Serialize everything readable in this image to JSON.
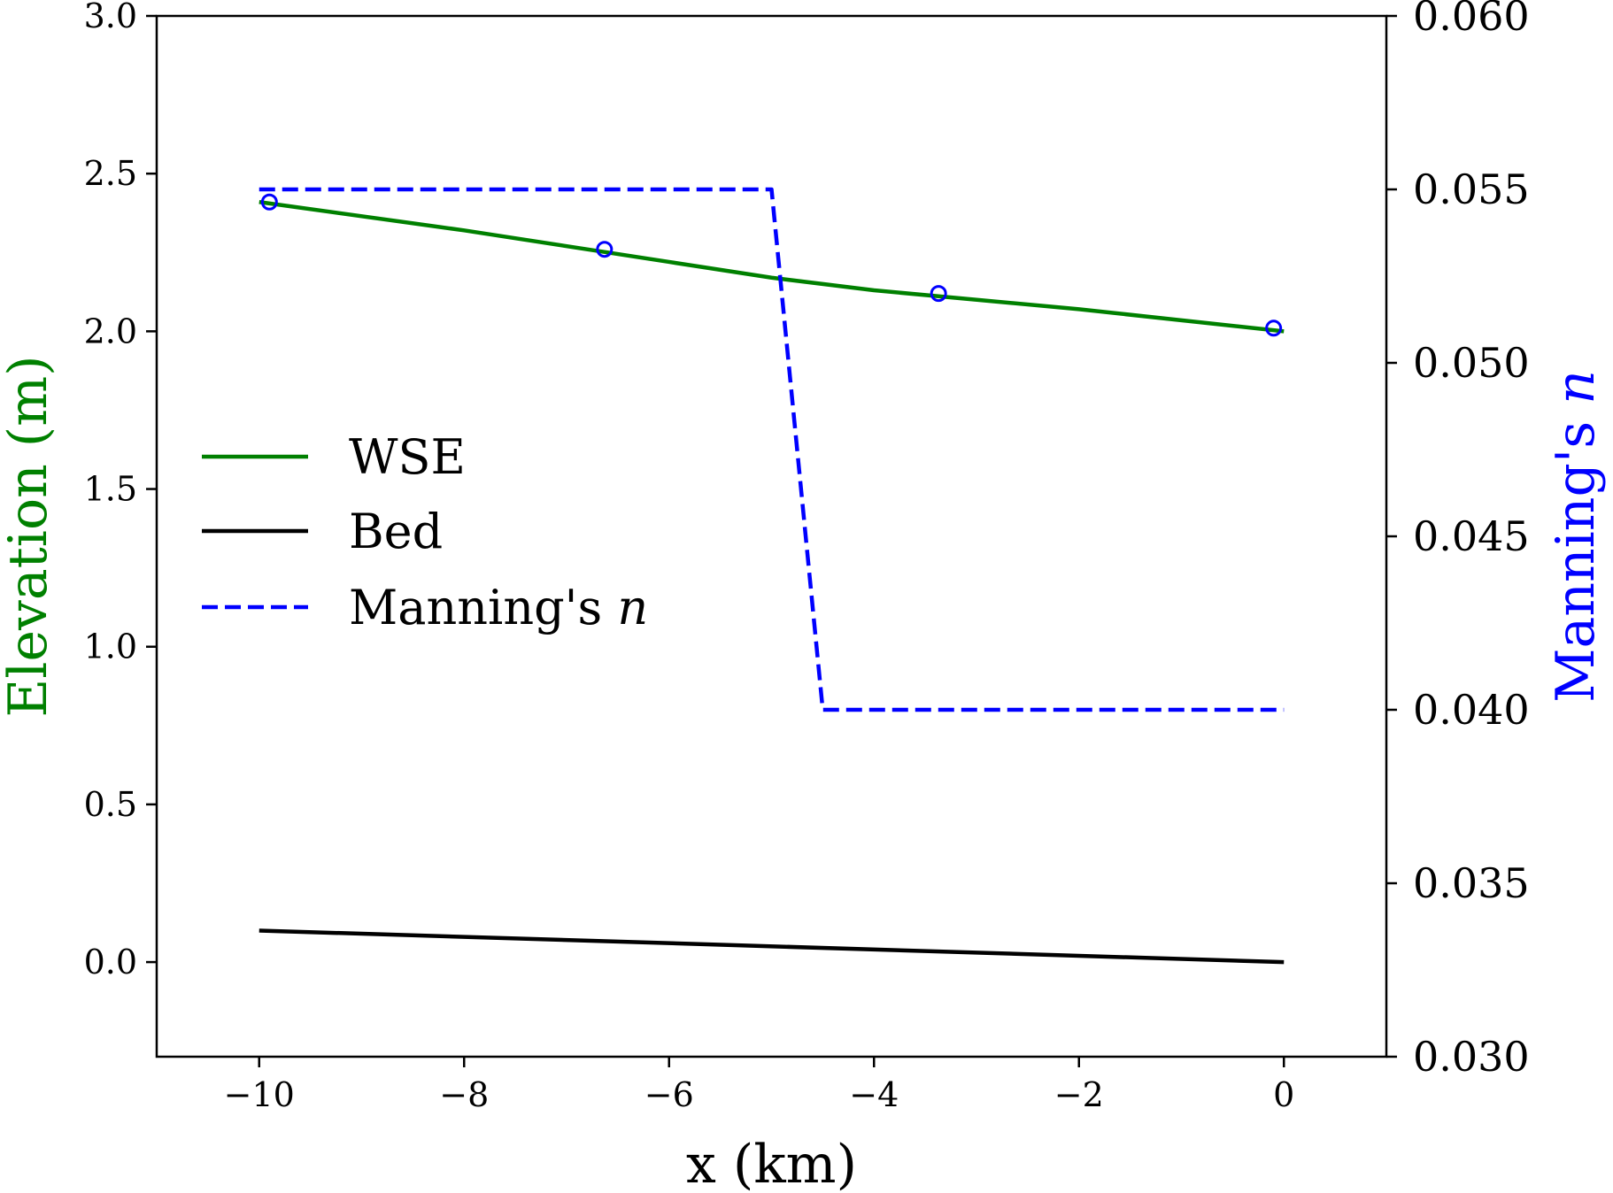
{
  "chart_data": {
    "type": "line",
    "xlabel": "x (km)",
    "ylabel_left": "Elevation (m)",
    "ylabel_right_prefix": "Manning's ",
    "ylabel_right_italic": "n",
    "xlim": [
      -11,
      1
    ],
    "ylim_left": [
      -0.3,
      3.0
    ],
    "ylim_right": [
      0.03,
      0.06
    ],
    "x_ticks": [
      -10,
      -8,
      -6,
      -4,
      -2,
      0
    ],
    "x_tick_labels": [
      "−10",
      "−8",
      "−6",
      "−4",
      "−2",
      "0"
    ],
    "y_left_ticks": [
      0.0,
      0.5,
      1.0,
      1.5,
      2.0,
      2.5,
      3.0
    ],
    "y_left_tick_labels": [
      "0.0",
      "0.5",
      "1.0",
      "1.5",
      "2.0",
      "2.5",
      "3.0"
    ],
    "y_right_ticks": [
      0.03,
      0.035,
      0.04,
      0.045,
      0.05,
      0.055,
      0.06
    ],
    "y_right_tick_labels": [
      "0.030",
      "0.035",
      "0.040",
      "0.045",
      "0.050",
      "0.055",
      "0.060"
    ],
    "grid": false,
    "legend_position": "center-left",
    "colors": {
      "wse": "#008000",
      "bed": "#000000",
      "manning": "#0000ff",
      "left_axis_title": "#008000",
      "right_axis_title": "#0000ff"
    },
    "series": [
      {
        "name": "WSE",
        "axis": "left",
        "style": "solid",
        "color": "#008000",
        "x": [
          -10,
          -8,
          -6,
          -5,
          -4,
          -2,
          0
        ],
        "y": [
          2.41,
          2.32,
          2.22,
          2.17,
          2.13,
          2.07,
          2.0
        ]
      },
      {
        "name": "Bed",
        "axis": "left",
        "style": "solid",
        "color": "#000000",
        "x": [
          -10,
          0
        ],
        "y": [
          0.1,
          0.0
        ]
      },
      {
        "name": "Manning's n",
        "name_prefix": "Manning's ",
        "name_italic": "n",
        "axis": "right",
        "style": "dashed",
        "color": "#0000ff",
        "x": [
          -10,
          -5,
          -4.5,
          0
        ],
        "y": [
          0.055,
          0.055,
          0.04,
          0.04
        ]
      },
      {
        "name": "observations",
        "axis": "left",
        "style": "marker-open-circle",
        "color": "#0000ff",
        "x": [
          -9.9,
          -6.63,
          -3.37,
          -0.1
        ],
        "y": [
          2.41,
          2.26,
          2.12,
          2.01
        ]
      }
    ],
    "legend": [
      {
        "series": "WSE",
        "label": "WSE"
      },
      {
        "series": "Bed",
        "label": "Bed"
      },
      {
        "series": "Manning's n",
        "label_prefix": "Manning's ",
        "label_italic": "n"
      }
    ]
  }
}
